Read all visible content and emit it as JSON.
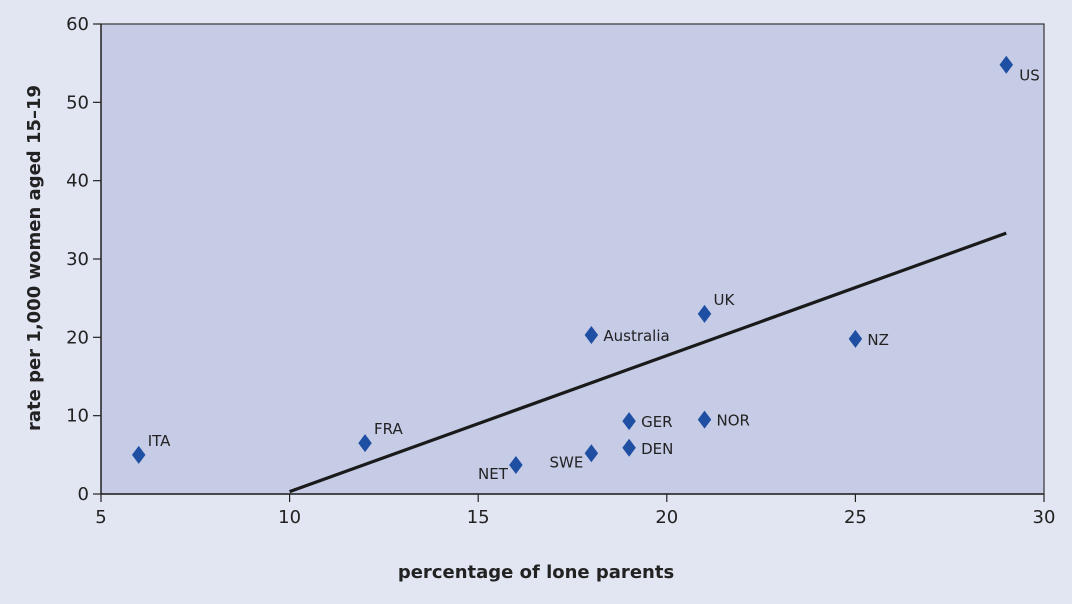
{
  "chart_data": {
    "type": "scatter",
    "title": "",
    "xlabel": "percentage of lone parents",
    "ylabel": "rate per 1,000 women aged 15–19",
    "xlim": [
      5,
      30
    ],
    "ylim": [
      0,
      60
    ],
    "x_ticks": [
      5,
      10,
      15,
      20,
      25,
      30
    ],
    "y_ticks": [
      0,
      10,
      20,
      30,
      40,
      50,
      60
    ],
    "grid": false,
    "marker": "diamond",
    "marker_color": "#1f4fa3",
    "plot_background": "#c6cbe6",
    "page_background": "#e2e6f2",
    "points": [
      {
        "label": "ITA",
        "x": 6,
        "y": 5,
        "label_pos": "above-right"
      },
      {
        "label": "FRA",
        "x": 12,
        "y": 6.5,
        "label_pos": "above-right"
      },
      {
        "label": "NET",
        "x": 16,
        "y": 3.7,
        "label_pos": "below-left"
      },
      {
        "label": "SWE",
        "x": 18,
        "y": 5.2,
        "label_pos": "below-left"
      },
      {
        "label": "Australia",
        "x": 18,
        "y": 20.3,
        "label_pos": "right"
      },
      {
        "label": "GER",
        "x": 19,
        "y": 9.3,
        "label_pos": "right"
      },
      {
        "label": "DEN",
        "x": 19,
        "y": 5.9,
        "label_pos": "right"
      },
      {
        "label": "UK",
        "x": 21,
        "y": 23,
        "label_pos": "above-right"
      },
      {
        "label": "NOR",
        "x": 21,
        "y": 9.5,
        "label_pos": "right"
      },
      {
        "label": "NZ",
        "x": 25,
        "y": 19.8,
        "label_pos": "right"
      },
      {
        "label": "US",
        "x": 29,
        "y": 54.8,
        "label_pos": "below-right"
      }
    ],
    "trendline": {
      "x": [
        10,
        29
      ],
      "y": [
        0.3,
        33.3
      ],
      "color": "#1a1a1a"
    }
  }
}
